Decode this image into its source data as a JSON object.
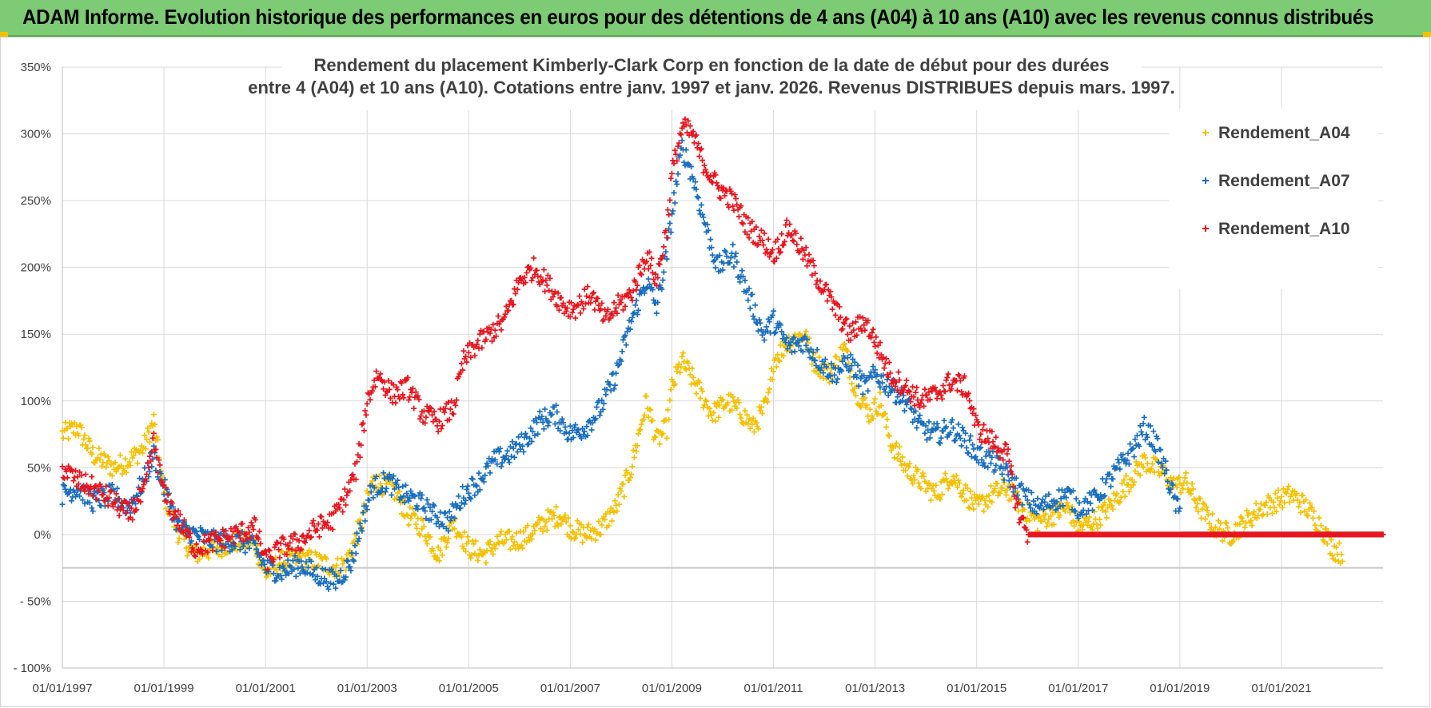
{
  "banner": {
    "text": "ADAM Informe. Evolution historique des performances en euros pour des détentions de 4 ans (A04) à 10 ans (A10) avec les revenus connus distribués"
  },
  "chart_data": {
    "type": "scatter",
    "title_line1": "Rendement du placement Kimberly-Clark Corp en fonction de la date de début pour des durées",
    "title_line2": "entre 4 (A04) et 10 ans (A10).  Cotations entre janv. 1997 et janv. 2026. Revenus DISTRIBUES depuis mars. 1997.",
    "xlabel": "",
    "ylabel": "",
    "x_range": [
      1997.0,
      2023.0
    ],
    "ylim": [
      -100,
      350
    ],
    "yticks": [
      -100,
      -50,
      0,
      50,
      100,
      150,
      200,
      250,
      300,
      350
    ],
    "ytick_labels": [
      "- 100%",
      "- 50%",
      "0%",
      "50%",
      "100%",
      "150%",
      "200%",
      "250%",
      "300%",
      "350%"
    ],
    "xticks": [
      1997,
      1999,
      2001,
      2003,
      2005,
      2007,
      2009,
      2011,
      2013,
      2015,
      2017,
      2019,
      2021
    ],
    "xtick_labels": [
      "01/01/1997",
      "01/01/1999",
      "01/01/2001",
      "01/01/2003",
      "01/01/2005",
      "01/01/2007",
      "01/01/2009",
      "01/01/2011",
      "01/01/2013",
      "01/01/2015",
      "01/01/2017",
      "01/01/2019",
      "01/01/2021"
    ],
    "reference_line_y": -25,
    "legend_position": "top-right",
    "series": [
      {
        "name": "Rendement_A04",
        "color": "#f5c000",
        "end_x": 2022.2,
        "points": [
          [
            1997.0,
            75
          ],
          [
            1997.3,
            80
          ],
          [
            1997.6,
            60
          ],
          [
            1998.0,
            50
          ],
          [
            1998.3,
            55
          ],
          [
            1998.6,
            65
          ],
          [
            1998.8,
            85
          ],
          [
            1999.0,
            30
          ],
          [
            1999.3,
            0
          ],
          [
            1999.6,
            -15
          ],
          [
            2000.0,
            -10
          ],
          [
            2000.5,
            -5
          ],
          [
            2000.8,
            -8
          ],
          [
            2001.0,
            -30
          ],
          [
            2001.3,
            -20
          ],
          [
            2001.7,
            -18
          ],
          [
            2002.0,
            -20
          ],
          [
            2002.4,
            -25
          ],
          [
            2002.6,
            -20
          ],
          [
            2002.9,
            10
          ],
          [
            2003.1,
            40
          ],
          [
            2003.5,
            35
          ],
          [
            2003.8,
            15
          ],
          [
            2004.1,
            5
          ],
          [
            2004.4,
            -15
          ],
          [
            2004.7,
            10
          ],
          [
            2005.0,
            -10
          ],
          [
            2005.3,
            -15
          ],
          [
            2005.6,
            -5
          ],
          [
            2005.9,
            -5
          ],
          [
            2006.2,
            0
          ],
          [
            2006.5,
            10
          ],
          [
            2006.8,
            15
          ],
          [
            2007.0,
            5
          ],
          [
            2007.3,
            0
          ],
          [
            2007.6,
            5
          ],
          [
            2007.9,
            20
          ],
          [
            2008.2,
            50
          ],
          [
            2008.5,
            100
          ],
          [
            2008.7,
            70
          ],
          [
            2008.9,
            80
          ],
          [
            2009.0,
            110
          ],
          [
            2009.2,
            130
          ],
          [
            2009.5,
            110
          ],
          [
            2009.8,
            90
          ],
          [
            2010.1,
            100
          ],
          [
            2010.4,
            90
          ],
          [
            2010.6,
            80
          ],
          [
            2010.9,
            100
          ],
          [
            2011.0,
            130
          ],
          [
            2011.3,
            145
          ],
          [
            2011.6,
            150
          ],
          [
            2011.8,
            130
          ],
          [
            2012.1,
            120
          ],
          [
            2012.4,
            140
          ],
          [
            2012.6,
            110
          ],
          [
            2012.9,
            90
          ],
          [
            2013.1,
            100
          ],
          [
            2013.3,
            70
          ],
          [
            2013.6,
            50
          ],
          [
            2013.9,
            40
          ],
          [
            2014.2,
            30
          ],
          [
            2014.5,
            45
          ],
          [
            2014.8,
            30
          ],
          [
            2015.0,
            20
          ],
          [
            2015.3,
            30
          ],
          [
            2015.6,
            35
          ],
          [
            2015.9,
            20
          ],
          [
            2016.2,
            10
          ],
          [
            2016.5,
            15
          ],
          [
            2016.8,
            20
          ],
          [
            2017.0,
            5
          ],
          [
            2017.3,
            10
          ],
          [
            2017.6,
            20
          ],
          [
            2017.9,
            35
          ],
          [
            2018.1,
            45
          ],
          [
            2018.3,
            55
          ],
          [
            2018.5,
            50
          ],
          [
            2018.7,
            45
          ],
          [
            2018.9,
            35
          ],
          [
            2019.1,
            40
          ],
          [
            2019.4,
            20
          ],
          [
            2019.7,
            5
          ],
          [
            2020.0,
            0
          ],
          [
            2020.3,
            10
          ],
          [
            2020.6,
            20
          ],
          [
            2020.9,
            25
          ],
          [
            2021.2,
            30
          ],
          [
            2021.5,
            20
          ],
          [
            2021.8,
            5
          ],
          [
            2022.0,
            -10
          ],
          [
            2022.2,
            -15
          ]
        ]
      },
      {
        "name": "Rendement_A07",
        "color": "#1a6ebd",
        "end_x": 2019.0,
        "points": [
          [
            1997.0,
            30
          ],
          [
            1997.3,
            35
          ],
          [
            1997.6,
            25
          ],
          [
            1998.0,
            30
          ],
          [
            1998.3,
            20
          ],
          [
            1998.6,
            40
          ],
          [
            1998.8,
            60
          ],
          [
            1999.0,
            35
          ],
          [
            1999.3,
            5
          ],
          [
            1999.6,
            0
          ],
          [
            2000.0,
            -5
          ],
          [
            2000.5,
            -5
          ],
          [
            2000.8,
            -10
          ],
          [
            2001.0,
            -25
          ],
          [
            2001.3,
            -28
          ],
          [
            2001.7,
            -22
          ],
          [
            2002.0,
            -30
          ],
          [
            2002.4,
            -35
          ],
          [
            2002.7,
            -20
          ],
          [
            2002.9,
            10
          ],
          [
            2003.1,
            35
          ],
          [
            2003.4,
            40
          ],
          [
            2003.7,
            30
          ],
          [
            2004.0,
            25
          ],
          [
            2004.3,
            15
          ],
          [
            2004.6,
            10
          ],
          [
            2004.9,
            30
          ],
          [
            2005.2,
            40
          ],
          [
            2005.5,
            55
          ],
          [
            2005.8,
            60
          ],
          [
            2006.1,
            70
          ],
          [
            2006.4,
            85
          ],
          [
            2006.7,
            90
          ],
          [
            2007.0,
            75
          ],
          [
            2007.3,
            80
          ],
          [
            2007.6,
            95
          ],
          [
            2007.9,
            120
          ],
          [
            2008.2,
            160
          ],
          [
            2008.5,
            190
          ],
          [
            2008.7,
            170
          ],
          [
            2008.9,
            210
          ],
          [
            2009.0,
            240
          ],
          [
            2009.2,
            290
          ],
          [
            2009.4,
            270
          ],
          [
            2009.6,
            240
          ],
          [
            2009.9,
            200
          ],
          [
            2010.2,
            210
          ],
          [
            2010.5,
            180
          ],
          [
            2010.8,
            150
          ],
          [
            2011.0,
            160
          ],
          [
            2011.3,
            140
          ],
          [
            2011.6,
            145
          ],
          [
            2011.9,
            130
          ],
          [
            2012.2,
            120
          ],
          [
            2012.5,
            130
          ],
          [
            2012.8,
            110
          ],
          [
            2013.0,
            120
          ],
          [
            2013.3,
            110
          ],
          [
            2013.6,
            100
          ],
          [
            2013.9,
            80
          ],
          [
            2014.2,
            75
          ],
          [
            2014.5,
            80
          ],
          [
            2014.8,
            70
          ],
          [
            2015.0,
            60
          ],
          [
            2015.3,
            55
          ],
          [
            2015.6,
            45
          ],
          [
            2015.9,
            30
          ],
          [
            2016.2,
            20
          ],
          [
            2016.5,
            25
          ],
          [
            2016.8,
            30
          ],
          [
            2017.0,
            20
          ],
          [
            2017.3,
            25
          ],
          [
            2017.6,
            40
          ],
          [
            2017.9,
            55
          ],
          [
            2018.1,
            65
          ],
          [
            2018.3,
            80
          ],
          [
            2018.5,
            70
          ],
          [
            2018.7,
            50
          ],
          [
            2018.9,
            25
          ],
          [
            2019.0,
            15
          ]
        ]
      },
      {
        "name": "Rendement_A10",
        "color": "#e8151e",
        "end_x": 2016.0,
        "points": [
          [
            1997.0,
            50
          ],
          [
            1997.3,
            40
          ],
          [
            1997.6,
            35
          ],
          [
            1998.0,
            25
          ],
          [
            1998.3,
            15
          ],
          [
            1998.6,
            30
          ],
          [
            1998.8,
            70
          ],
          [
            1999.0,
            30
          ],
          [
            1999.3,
            10
          ],
          [
            1999.6,
            -10
          ],
          [
            2000.0,
            -5
          ],
          [
            2000.4,
            0
          ],
          [
            2000.8,
            5
          ],
          [
            2001.0,
            -20
          ],
          [
            2001.3,
            -10
          ],
          [
            2001.7,
            -5
          ],
          [
            2002.0,
            5
          ],
          [
            2002.3,
            10
          ],
          [
            2002.6,
            30
          ],
          [
            2002.8,
            50
          ],
          [
            2003.0,
            100
          ],
          [
            2003.2,
            120
          ],
          [
            2003.5,
            105
          ],
          [
            2003.8,
            110
          ],
          [
            2004.1,
            90
          ],
          [
            2004.4,
            85
          ],
          [
            2004.7,
            95
          ],
          [
            2004.9,
            130
          ],
          [
            2005.1,
            140
          ],
          [
            2005.4,
            150
          ],
          [
            2005.7,
            160
          ],
          [
            2006.0,
            190
          ],
          [
            2006.3,
            200
          ],
          [
            2006.6,
            185
          ],
          [
            2006.9,
            170
          ],
          [
            2007.1,
            170
          ],
          [
            2007.4,
            180
          ],
          [
            2007.7,
            160
          ],
          [
            2007.9,
            170
          ],
          [
            2008.2,
            180
          ],
          [
            2008.5,
            210
          ],
          [
            2008.7,
            190
          ],
          [
            2008.9,
            230
          ],
          [
            2009.0,
            270
          ],
          [
            2009.2,
            305
          ],
          [
            2009.4,
            300
          ],
          [
            2009.6,
            280
          ],
          [
            2009.9,
            260
          ],
          [
            2010.2,
            250
          ],
          [
            2010.5,
            230
          ],
          [
            2010.8,
            220
          ],
          [
            2011.0,
            210
          ],
          [
            2011.3,
            230
          ],
          [
            2011.6,
            210
          ],
          [
            2011.9,
            190
          ],
          [
            2012.2,
            170
          ],
          [
            2012.5,
            150
          ],
          [
            2012.8,
            160
          ],
          [
            2013.0,
            145
          ],
          [
            2013.3,
            120
          ],
          [
            2013.6,
            110
          ],
          [
            2013.9,
            100
          ],
          [
            2014.2,
            105
          ],
          [
            2014.5,
            115
          ],
          [
            2014.8,
            110
          ],
          [
            2015.0,
            80
          ],
          [
            2015.3,
            70
          ],
          [
            2015.6,
            60
          ],
          [
            2015.8,
            20
          ],
          [
            2016.0,
            0
          ]
        ]
      }
    ]
  }
}
